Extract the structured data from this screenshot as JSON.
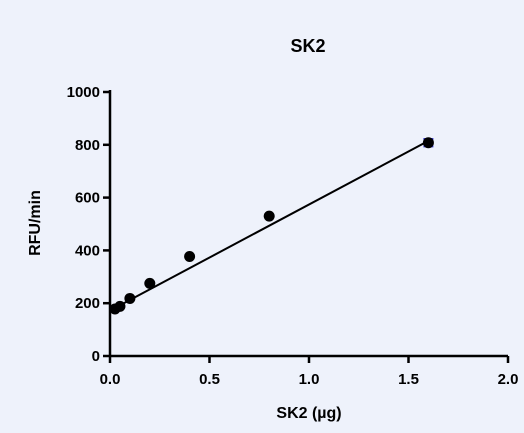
{
  "chart_data": {
    "type": "scatter",
    "title": "SK2",
    "xlabel": "SK2 (µg)",
    "ylabel": "RFU/min",
    "xlim": [
      0,
      2.0
    ],
    "ylim": [
      0,
      1000
    ],
    "x_ticks": [
      "0.0",
      "0.5",
      "1.0",
      "1.5",
      "2.0"
    ],
    "y_ticks": [
      "0",
      "200",
      "400",
      "600",
      "800",
      "1000"
    ],
    "grid": false,
    "series": [
      {
        "x": [
          0.025,
          0.05,
          0.1,
          0.2,
          0.4,
          0.8,
          1.6
        ],
        "y": [
          178,
          188,
          218,
          275,
          377,
          530,
          808
        ],
        "error": [
          0,
          0,
          0,
          0,
          0,
          0,
          14
        ],
        "color": "#000000",
        "error_color": "#3b3bd6"
      }
    ],
    "fit_line": {
      "x": [
        0.0,
        1.6
      ],
      "y": [
        172,
        815
      ],
      "color": "#000000"
    }
  }
}
